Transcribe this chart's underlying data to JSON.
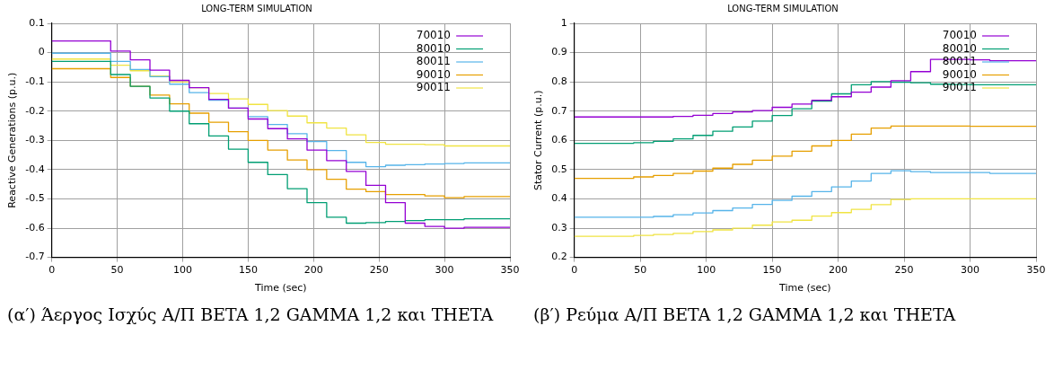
{
  "chart_data": [
    {
      "type": "step",
      "title": "LONG-TERM SIMULATION",
      "xlabel": "Time (sec)",
      "ylabel": "Reactive Generations (p.u.)",
      "x": [
        0,
        45,
        60,
        75,
        90,
        105,
        120,
        135,
        150,
        165,
        180,
        195,
        210,
        225,
        240,
        255,
        270,
        285,
        300,
        315,
        350
      ],
      "xlim": [
        0,
        350
      ],
      "xticks": [
        0,
        50,
        100,
        150,
        200,
        250,
        300,
        350
      ],
      "ylim": [
        -0.7,
        0.1
      ],
      "yticks": [
        -0.7,
        -0.6,
        -0.5,
        -0.4,
        -0.3,
        -0.2,
        -0.1,
        0,
        0.1
      ],
      "grid": true,
      "legend": "top right",
      "line_style": "solid",
      "marker": "none",
      "series": [
        {
          "name": "70010",
          "color": "#9400d3",
          "values": [
            0.04,
            0.005,
            -0.025,
            -0.06,
            -0.095,
            -0.12,
            -0.16,
            -0.19,
            -0.227,
            -0.26,
            -0.295,
            -0.333,
            -0.369,
            -0.406,
            -0.454,
            -0.513,
            -0.583,
            -0.594,
            -0.6,
            -0.597,
            -0.597
          ]
        },
        {
          "name": "80010",
          "color": "#009e73",
          "values": [
            -0.03,
            -0.075,
            -0.115,
            -0.155,
            -0.2,
            -0.243,
            -0.285,
            -0.33,
            -0.375,
            -0.417,
            -0.465,
            -0.513,
            -0.563,
            -0.583,
            -0.581,
            -0.577,
            -0.574,
            -0.571,
            -0.571,
            -0.568,
            -0.568
          ]
        },
        {
          "name": "80011",
          "color": "#56b4e9",
          "values": [
            -0.002,
            -0.03,
            -0.058,
            -0.082,
            -0.108,
            -0.137,
            -0.163,
            -0.19,
            -0.219,
            -0.246,
            -0.277,
            -0.304,
            -0.335,
            -0.375,
            -0.39,
            -0.385,
            -0.383,
            -0.381,
            -0.379,
            -0.377,
            -0.377
          ]
        },
        {
          "name": "90010",
          "color": "#e69f00",
          "values": [
            -0.055,
            -0.085,
            -0.115,
            -0.145,
            -0.175,
            -0.207,
            -0.238,
            -0.27,
            -0.3,
            -0.333,
            -0.367,
            -0.4,
            -0.433,
            -0.467,
            -0.475,
            -0.485,
            -0.485,
            -0.49,
            -0.496,
            -0.492,
            -0.492
          ]
        },
        {
          "name": "90011",
          "color": "#f0e442",
          "values": [
            -0.022,
            -0.043,
            -0.062,
            -0.08,
            -0.1,
            -0.12,
            -0.14,
            -0.158,
            -0.177,
            -0.198,
            -0.217,
            -0.24,
            -0.258,
            -0.281,
            -0.307,
            -0.313,
            -0.313,
            -0.315,
            -0.319,
            -0.319,
            -0.319
          ]
        }
      ],
      "annotations": [
        "(α′) Άεργος Ισχύς Α/Π BETA 1,2 GAMMA 1,2 και THETA"
      ]
    },
    {
      "type": "step",
      "title": "LONG-TERM SIMULATION",
      "xlabel": "Time (sec)",
      "ylabel": "Stator Current (p.u.)",
      "x": [
        0,
        45,
        60,
        75,
        90,
        105,
        120,
        135,
        150,
        165,
        180,
        195,
        210,
        225,
        240,
        255,
        270,
        285,
        300,
        315,
        350
      ],
      "xlim": [
        0,
        350
      ],
      "xticks": [
        0,
        50,
        100,
        150,
        200,
        250,
        300,
        350
      ],
      "ylim": [
        0.2,
        1
      ],
      "yticks": [
        0.2,
        0.3,
        0.4,
        0.5,
        0.6,
        0.7,
        0.8,
        0.9,
        1
      ],
      "grid": true,
      "legend": "top right",
      "line_style": "solid",
      "marker": "none",
      "series": [
        {
          "name": "70010",
          "color": "#9400d3",
          "values": [
            0.68,
            0.68,
            0.68,
            0.682,
            0.686,
            0.692,
            0.697,
            0.702,
            0.713,
            0.724,
            0.737,
            0.749,
            0.765,
            0.782,
            0.804,
            0.835,
            0.877,
            0.877,
            0.875,
            0.872,
            0.872
          ]
        },
        {
          "name": "80010",
          "color": "#009e73",
          "values": [
            0.59,
            0.592,
            0.597,
            0.605,
            0.617,
            0.631,
            0.646,
            0.666,
            0.685,
            0.708,
            0.734,
            0.759,
            0.79,
            0.801,
            0.799,
            0.797,
            0.792,
            0.791,
            0.79,
            0.79,
            0.79
          ]
        },
        {
          "name": "80011",
          "color": "#56b4e9",
          "values": [
            0.337,
            0.337,
            0.34,
            0.346,
            0.352,
            0.36,
            0.369,
            0.381,
            0.395,
            0.409,
            0.425,
            0.441,
            0.461,
            0.487,
            0.496,
            0.493,
            0.49,
            0.49,
            0.49,
            0.487,
            0.487
          ]
        },
        {
          "name": "90010",
          "color": "#e69f00",
          "values": [
            0.47,
            0.475,
            0.48,
            0.487,
            0.495,
            0.505,
            0.518,
            0.532,
            0.546,
            0.563,
            0.581,
            0.6,
            0.621,
            0.642,
            0.649,
            0.649,
            0.649,
            0.649,
            0.648,
            0.648,
            0.648
          ]
        },
        {
          "name": "90011",
          "color": "#f0e442",
          "values": [
            0.272,
            0.275,
            0.278,
            0.282,
            0.288,
            0.294,
            0.3,
            0.31,
            0.321,
            0.327,
            0.341,
            0.353,
            0.364,
            0.38,
            0.398,
            0.4,
            0.4,
            0.4,
            0.4,
            0.4,
            0.4
          ]
        }
      ],
      "annotations": [
        "(β′) Ρεύμα Α/Π BETA 1,2 GAMMA 1,2 και THETA"
      ]
    }
  ]
}
